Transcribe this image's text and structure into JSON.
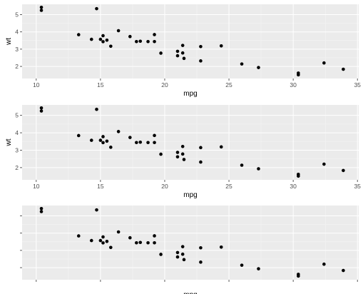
{
  "chart_data": [
    {
      "type": "scatter",
      "xlabel": "mpg",
      "ylabel": "wt",
      "xlim": [
        8.9,
        35.1
      ],
      "ylim": [
        1.3,
        5.6
      ],
      "xticks": [
        10,
        15,
        20,
        25,
        30,
        35
      ],
      "yticks": [
        2,
        3,
        4,
        5
      ],
      "show_x_tick_labels": true,
      "show_y_tick_labels": true,
      "show_y_title": true,
      "grid": true
    },
    {
      "type": "scatter",
      "xlabel": "mpg",
      "ylabel": "wt",
      "xlim": [
        8.9,
        35.1
      ],
      "ylim": [
        1.3,
        5.6
      ],
      "xticks": [
        10,
        15,
        20,
        25,
        30,
        35
      ],
      "yticks": [
        2,
        3,
        4,
        5
      ],
      "show_x_tick_labels": true,
      "show_y_tick_labels": true,
      "show_y_title": true,
      "grid": true
    },
    {
      "type": "scatter",
      "xlabel": "mpg",
      "ylabel": "",
      "xlim": [
        8.9,
        35.1
      ],
      "ylim": [
        1.3,
        5.6
      ],
      "xticks": [
        10,
        15,
        20,
        25,
        30,
        35
      ],
      "yticks": [
        2,
        3,
        4,
        5
      ],
      "show_x_tick_labels": false,
      "show_y_tick_labels": false,
      "show_y_title": false,
      "grid": true
    }
  ],
  "points": [
    {
      "x": 21.0,
      "y": 2.62
    },
    {
      "x": 21.0,
      "y": 2.875
    },
    {
      "x": 22.8,
      "y": 2.32
    },
    {
      "x": 21.4,
      "y": 3.215
    },
    {
      "x": 18.7,
      "y": 3.44
    },
    {
      "x": 18.1,
      "y": 3.46
    },
    {
      "x": 14.3,
      "y": 3.57
    },
    {
      "x": 24.4,
      "y": 3.19
    },
    {
      "x": 22.8,
      "y": 3.15
    },
    {
      "x": 19.2,
      "y": 3.44
    },
    {
      "x": 17.8,
      "y": 3.44
    },
    {
      "x": 16.4,
      "y": 4.07
    },
    {
      "x": 17.3,
      "y": 3.73
    },
    {
      "x": 15.2,
      "y": 3.78
    },
    {
      "x": 10.4,
      "y": 5.25
    },
    {
      "x": 10.4,
      "y": 5.424
    },
    {
      "x": 14.7,
      "y": 5.345
    },
    {
      "x": 32.4,
      "y": 2.2
    },
    {
      "x": 30.4,
      "y": 1.615
    },
    {
      "x": 33.9,
      "y": 1.835
    },
    {
      "x": 21.5,
      "y": 2.465
    },
    {
      "x": 15.5,
      "y": 3.52
    },
    {
      "x": 15.2,
      "y": 3.435
    },
    {
      "x": 13.3,
      "y": 3.84
    },
    {
      "x": 19.2,
      "y": 3.845
    },
    {
      "x": 27.3,
      "y": 1.935
    },
    {
      "x": 26.0,
      "y": 2.14
    },
    {
      "x": 30.4,
      "y": 1.513
    },
    {
      "x": 15.8,
      "y": 3.17
    },
    {
      "x": 19.7,
      "y": 2.77
    },
    {
      "x": 15.0,
      "y": 3.57
    },
    {
      "x": 21.4,
      "y": 2.78
    }
  ],
  "colors": {
    "panel_bg": "#ebebeb",
    "grid_major": "#ffffff",
    "grid_minor": "#f5f5f5",
    "point": "#000000",
    "tick_mark": "#333333"
  }
}
